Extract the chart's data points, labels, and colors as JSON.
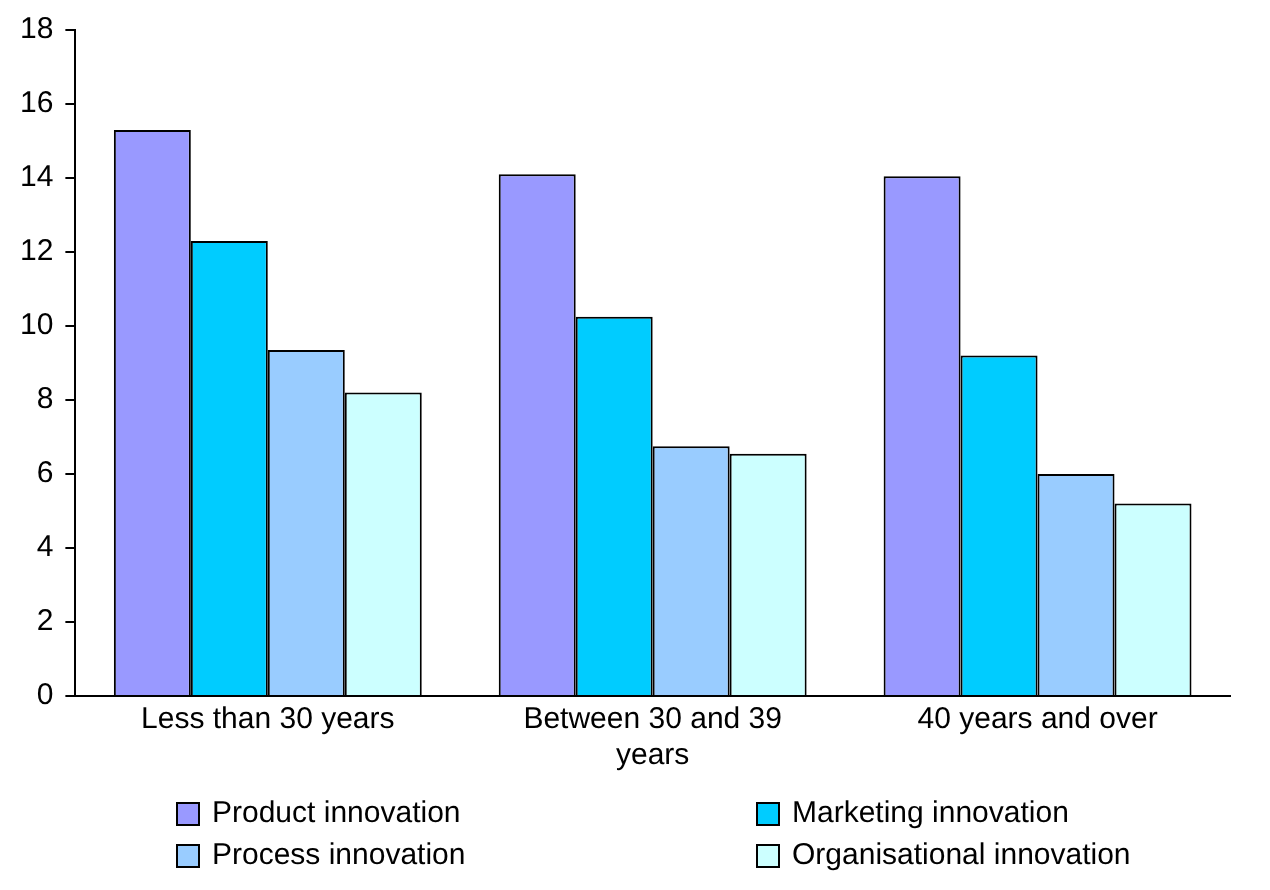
{
  "chart_data": {
    "type": "bar",
    "categories": [
      "Less than 30 years",
      "Between 30 and 39 years",
      "40 years and over"
    ],
    "series": [
      {
        "name": "Product innovation",
        "color": "#9999ff",
        "values": [
          15.3,
          14.1,
          14.05
        ]
      },
      {
        "name": "Marketing innovation",
        "color": "#00ccff",
        "values": [
          12.3,
          10.25,
          9.2
        ]
      },
      {
        "name": "Process innovation",
        "color": "#99ccff",
        "values": [
          9.35,
          6.75,
          6.0
        ]
      },
      {
        "name": "Organisational innovation",
        "color": "#ccffff",
        "values": [
          8.2,
          6.55,
          5.2
        ]
      }
    ],
    "ylim": [
      0,
      18
    ],
    "yticks": [
      0,
      2,
      4,
      6,
      8,
      10,
      12,
      14,
      16,
      18
    ],
    "grid": false,
    "legend": "bottom"
  }
}
